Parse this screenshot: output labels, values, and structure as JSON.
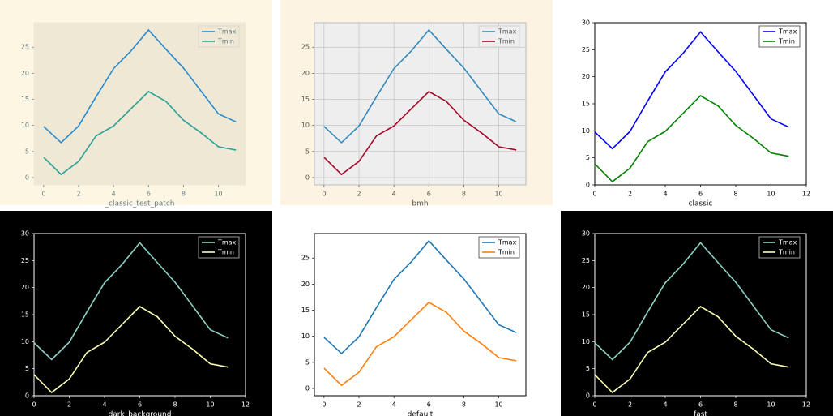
{
  "chart_data": [
    {
      "type": "line",
      "xlabel": "_classic_test_patch",
      "background": "#fdf6e3",
      "axes_background": "#eee8d5",
      "text_color": "#657b83",
      "frame_color": "#eee8d5",
      "grid": false,
      "legend": "upper right",
      "x": [
        0,
        1,
        2,
        3,
        4,
        5,
        6,
        7,
        8,
        9,
        10,
        11
      ],
      "xlim": [
        -0.55,
        11.55
      ],
      "ylim": [
        -1.4,
        29.7
      ],
      "xticks": [
        0,
        2,
        4,
        6,
        8,
        10
      ],
      "yticks": [
        0,
        5,
        10,
        15,
        20,
        25
      ],
      "series": [
        {
          "name": "Tmax",
          "color": "#268bd2",
          "values": [
            9.8,
            6.7,
            9.9,
            15.5,
            20.9,
            24.3,
            28.3,
            24.6,
            21.0,
            16.6,
            12.2,
            10.7
          ]
        },
        {
          "name": "Tmin",
          "color": "#2aa198",
          "values": [
            3.9,
            0.6,
            3.1,
            8.0,
            9.9,
            13.2,
            16.5,
            14.6,
            11.0,
            8.6,
            5.9,
            5.3
          ]
        }
      ]
    },
    {
      "type": "line",
      "xlabel": "bmh",
      "background": "#fcf3e2",
      "axes_background": "#eeeeee",
      "text_color": "#555555",
      "frame_color": "#bcbcbc",
      "grid": true,
      "legend": "upper right",
      "x": [
        0,
        1,
        2,
        3,
        4,
        5,
        6,
        7,
        8,
        9,
        10,
        11
      ],
      "xlim": [
        -0.55,
        11.55
      ],
      "ylim": [
        -1.4,
        29.7
      ],
      "xticks": [
        0,
        2,
        4,
        6,
        8,
        10
      ],
      "yticks": [
        0,
        5,
        10,
        15,
        20,
        25
      ],
      "series": [
        {
          "name": "Tmax",
          "color": "#348abd",
          "values": [
            9.8,
            6.7,
            9.9,
            15.5,
            20.9,
            24.3,
            28.3,
            24.6,
            21.0,
            16.6,
            12.2,
            10.7
          ]
        },
        {
          "name": "Tmin",
          "color": "#a60628",
          "values": [
            3.9,
            0.6,
            3.1,
            8.0,
            9.9,
            13.2,
            16.5,
            14.6,
            11.0,
            8.6,
            5.9,
            5.3
          ]
        }
      ]
    },
    {
      "type": "line",
      "xlabel": "classic",
      "background": "#ffffff",
      "axes_background": "#ffffff",
      "text_color": "#000000",
      "frame_color": "#000000",
      "grid": false,
      "legend": "upper right",
      "x": [
        0,
        1,
        2,
        3,
        4,
        5,
        6,
        7,
        8,
        9,
        10,
        11
      ],
      "xlim": [
        0,
        12
      ],
      "ylim": [
        0,
        30
      ],
      "xticks": [
        0,
        2,
        4,
        6,
        8,
        10,
        12
      ],
      "yticks": [
        0,
        5,
        10,
        15,
        20,
        25,
        30
      ],
      "series": [
        {
          "name": "Tmax",
          "color": "#0000ff",
          "values": [
            9.8,
            6.7,
            9.9,
            15.5,
            20.9,
            24.3,
            28.3,
            24.6,
            21.0,
            16.6,
            12.2,
            10.7
          ]
        },
        {
          "name": "Tmin",
          "color": "#008000",
          "values": [
            3.9,
            0.6,
            3.1,
            8.0,
            9.9,
            13.2,
            16.5,
            14.6,
            11.0,
            8.6,
            5.9,
            5.3
          ]
        }
      ]
    },
    {
      "type": "line",
      "xlabel": "dark_background",
      "background": "#000000",
      "axes_background": "#000000",
      "text_color": "#ffffff",
      "frame_color": "#ffffff",
      "grid": false,
      "legend": "upper right",
      "x": [
        0,
        1,
        2,
        3,
        4,
        5,
        6,
        7,
        8,
        9,
        10,
        11
      ],
      "xlim": [
        0,
        12
      ],
      "ylim": [
        0,
        30
      ],
      "xticks": [
        0,
        2,
        4,
        6,
        8,
        10,
        12
      ],
      "yticks": [
        0,
        5,
        10,
        15,
        20,
        25,
        30
      ],
      "series": [
        {
          "name": "Tmax",
          "color": "#8dd3c7",
          "values": [
            9.8,
            6.7,
            9.9,
            15.5,
            20.9,
            24.3,
            28.3,
            24.6,
            21.0,
            16.6,
            12.2,
            10.7
          ]
        },
        {
          "name": "Tmin",
          "color": "#feffb3",
          "values": [
            3.9,
            0.6,
            3.1,
            8.0,
            9.9,
            13.2,
            16.5,
            14.6,
            11.0,
            8.6,
            5.9,
            5.3
          ]
        }
      ]
    },
    {
      "type": "line",
      "xlabel": "default",
      "background": "#ffffff",
      "axes_background": "#ffffff",
      "text_color": "#000000",
      "frame_color": "#000000",
      "grid": false,
      "legend": "upper right",
      "x": [
        0,
        1,
        2,
        3,
        4,
        5,
        6,
        7,
        8,
        9,
        10,
        11
      ],
      "xlim": [
        -0.55,
        11.55
      ],
      "ylim": [
        -1.4,
        29.7
      ],
      "xticks": [
        0,
        2,
        4,
        6,
        8,
        10
      ],
      "yticks": [
        0,
        5,
        10,
        15,
        20,
        25
      ],
      "series": [
        {
          "name": "Tmax",
          "color": "#1f77b4",
          "values": [
            9.8,
            6.7,
            9.9,
            15.5,
            20.9,
            24.3,
            28.3,
            24.6,
            21.0,
            16.6,
            12.2,
            10.7
          ]
        },
        {
          "name": "Tmin",
          "color": "#ff7f0e",
          "values": [
            3.9,
            0.6,
            3.1,
            8.0,
            9.9,
            13.2,
            16.5,
            14.6,
            11.0,
            8.6,
            5.9,
            5.3
          ]
        }
      ]
    },
    {
      "type": "line",
      "xlabel": "fast",
      "background": "#000000",
      "axes_background": "#000000",
      "text_color": "#ffffff",
      "frame_color": "#ffffff",
      "grid": false,
      "legend": "upper right",
      "x": [
        0,
        1,
        2,
        3,
        4,
        5,
        6,
        7,
        8,
        9,
        10,
        11
      ],
      "xlim": [
        0,
        12
      ],
      "ylim": [
        0,
        30
      ],
      "xticks": [
        0,
        2,
        4,
        6,
        8,
        10,
        12
      ],
      "yticks": [
        0,
        5,
        10,
        15,
        20,
        25,
        30
      ],
      "series": [
        {
          "name": "Tmax",
          "color": "#8dd3c7",
          "values": [
            9.8,
            6.7,
            9.9,
            15.5,
            20.9,
            24.3,
            28.3,
            24.6,
            21.0,
            16.6,
            12.2,
            10.7
          ]
        },
        {
          "name": "Tmin",
          "color": "#feffb3",
          "values": [
            3.9,
            0.6,
            3.1,
            8.0,
            9.9,
            13.2,
            16.5,
            14.6,
            11.0,
            8.6,
            5.9,
            5.3
          ]
        }
      ]
    }
  ]
}
